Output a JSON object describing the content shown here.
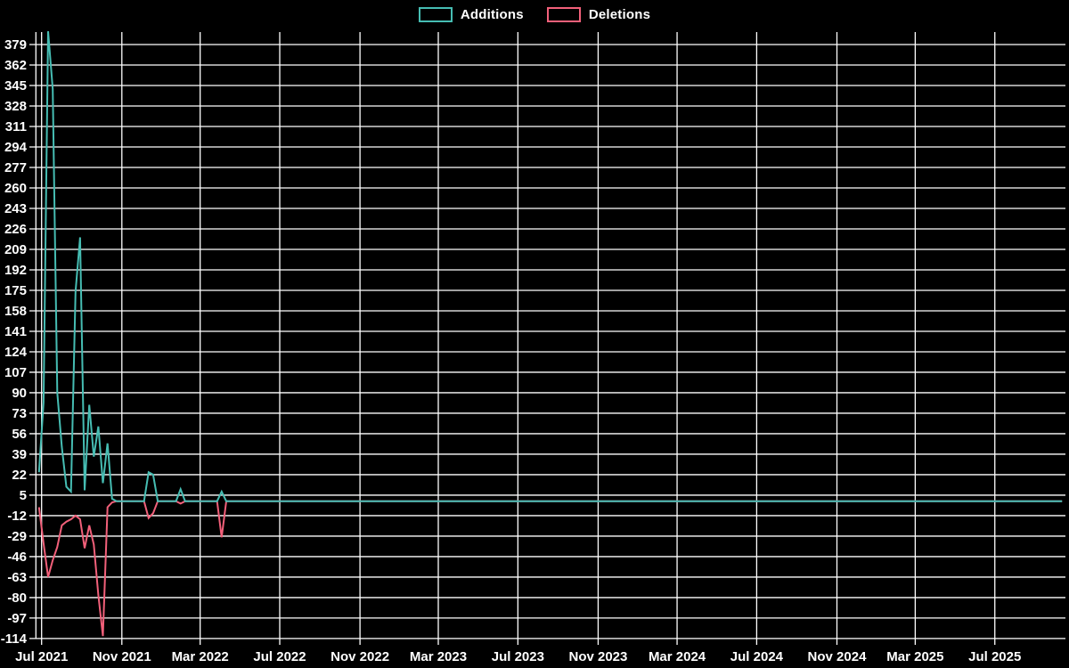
{
  "legend": {
    "items": [
      {
        "label": "Additions",
        "color": "#46bdb3"
      },
      {
        "label": "Deletions",
        "color": "#f2607a"
      }
    ]
  },
  "colors": {
    "background": "#000000",
    "grid": "#ffffff",
    "text": "#ffffff",
    "additions": "#46bdb3",
    "deletions": "#f2607a"
  },
  "chart_data": {
    "type": "line",
    "title": "",
    "xlabel": "",
    "ylabel": "",
    "grid": true,
    "legend_position": "top-center",
    "ylim": [
      -114,
      390
    ],
    "y_ticks": [
      379,
      362,
      345,
      328,
      311,
      294,
      277,
      260,
      243,
      226,
      209,
      192,
      175,
      158,
      141,
      124,
      107,
      90,
      73,
      56,
      39,
      22,
      5,
      -12,
      -29,
      -46,
      -63,
      -80,
      -97,
      -114
    ],
    "x_ticks": [
      {
        "label": "Jul 2021",
        "date": "2021-07-01"
      },
      {
        "label": "Nov 2021",
        "date": "2021-11-01"
      },
      {
        "label": "Mar 2022",
        "date": "2022-03-01"
      },
      {
        "label": "Jul 2022",
        "date": "2022-07-01"
      },
      {
        "label": "Nov 2022",
        "date": "2022-11-01"
      },
      {
        "label": "Mar 2023",
        "date": "2023-03-01"
      },
      {
        "label": "Jul 2023",
        "date": "2023-07-01"
      },
      {
        "label": "Nov 2023",
        "date": "2023-11-01"
      },
      {
        "label": "Mar 2024",
        "date": "2024-03-01"
      },
      {
        "label": "Jul 2024",
        "date": "2024-07-01"
      },
      {
        "label": "Nov 2024",
        "date": "2024-11-01"
      },
      {
        "label": "Mar 2025",
        "date": "2025-03-01"
      },
      {
        "label": "Jul 2025",
        "date": "2025-07-01"
      }
    ],
    "series": [
      {
        "name": "Additions",
        "color": "#46bdb3",
        "points": [
          [
            "2021-06-27",
            24
          ],
          [
            "2021-07-04",
            82
          ],
          [
            "2021-07-11",
            390
          ],
          [
            "2021-07-18",
            342
          ],
          [
            "2021-07-25",
            90
          ],
          [
            "2021-08-01",
            45
          ],
          [
            "2021-08-08",
            12
          ],
          [
            "2021-08-15",
            8
          ],
          [
            "2021-08-22",
            174
          ],
          [
            "2021-08-29",
            219
          ],
          [
            "2021-09-05",
            9
          ],
          [
            "2021-09-12",
            80
          ],
          [
            "2021-09-19",
            37
          ],
          [
            "2021-09-26",
            62
          ],
          [
            "2021-10-03",
            15
          ],
          [
            "2021-10-10",
            48
          ],
          [
            "2021-10-17",
            2
          ],
          [
            "2021-10-24",
            0
          ],
          [
            "2021-10-31",
            0
          ],
          [
            "2021-11-07",
            0
          ],
          [
            "2021-11-14",
            0
          ],
          [
            "2021-11-21",
            0
          ],
          [
            "2021-11-28",
            0
          ],
          [
            "2021-12-05",
            0
          ],
          [
            "2021-12-12",
            24
          ],
          [
            "2021-12-19",
            22
          ],
          [
            "2021-12-26",
            0
          ],
          [
            "2022-01-02",
            0
          ],
          [
            "2022-01-09",
            0
          ],
          [
            "2022-01-16",
            0
          ],
          [
            "2022-01-23",
            0
          ],
          [
            "2022-01-30",
            10
          ],
          [
            "2022-02-06",
            0
          ],
          [
            "2022-02-13",
            0
          ],
          [
            "2022-02-20",
            0
          ],
          [
            "2022-02-27",
            0
          ],
          [
            "2022-03-06",
            0
          ],
          [
            "2022-03-13",
            0
          ],
          [
            "2022-03-20",
            0
          ],
          [
            "2022-03-27",
            0
          ],
          [
            "2022-04-03",
            8
          ],
          [
            "2022-04-10",
            0
          ]
        ]
      },
      {
        "name": "Deletions",
        "color": "#f2607a",
        "points": [
          [
            "2021-06-27",
            -5
          ],
          [
            "2021-07-04",
            -35
          ],
          [
            "2021-07-11",
            -63
          ],
          [
            "2021-07-18",
            -49
          ],
          [
            "2021-07-25",
            -38
          ],
          [
            "2021-08-01",
            -20
          ],
          [
            "2021-08-08",
            -17
          ],
          [
            "2021-08-15",
            -15
          ],
          [
            "2021-08-22",
            -12
          ],
          [
            "2021-08-29",
            -15
          ],
          [
            "2021-09-05",
            -39
          ],
          [
            "2021-09-12",
            -20
          ],
          [
            "2021-09-19",
            -36
          ],
          [
            "2021-09-26",
            -78
          ],
          [
            "2021-10-03",
            -112
          ],
          [
            "2021-10-10",
            -5
          ],
          [
            "2021-10-17",
            -1
          ],
          [
            "2021-10-24",
            0
          ],
          [
            "2021-10-31",
            0
          ],
          [
            "2021-11-07",
            0
          ],
          [
            "2021-11-14",
            0
          ],
          [
            "2021-11-21",
            0
          ],
          [
            "2021-11-28",
            0
          ],
          [
            "2021-12-05",
            0
          ],
          [
            "2021-12-12",
            -14
          ],
          [
            "2021-12-19",
            -10
          ],
          [
            "2021-12-26",
            0
          ],
          [
            "2022-01-02",
            0
          ],
          [
            "2022-01-09",
            0
          ],
          [
            "2022-01-16",
            0
          ],
          [
            "2022-01-23",
            0
          ],
          [
            "2022-01-30",
            -2
          ],
          [
            "2022-02-06",
            0
          ],
          [
            "2022-02-13",
            0
          ],
          [
            "2022-02-20",
            0
          ],
          [
            "2022-02-27",
            0
          ],
          [
            "2022-03-06",
            0
          ],
          [
            "2022-03-13",
            0
          ],
          [
            "2022-03-20",
            0
          ],
          [
            "2022-03-27",
            0
          ],
          [
            "2022-04-03",
            -30
          ],
          [
            "2022-04-10",
            0
          ]
        ]
      }
    ],
    "zero_tail": {
      "start": "2022-04-17",
      "end": "2025-10-12",
      "value": 0,
      "interval_days": 7
    }
  }
}
